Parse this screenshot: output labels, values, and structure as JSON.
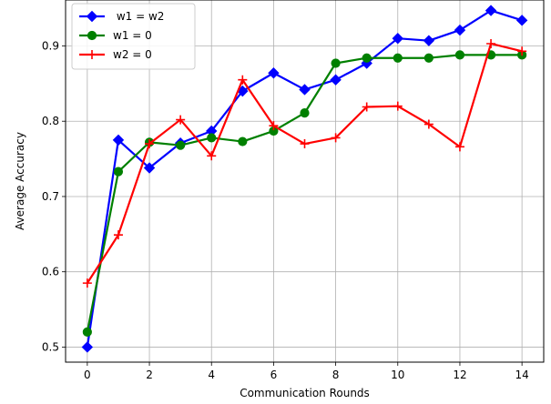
{
  "chart_data": {
    "type": "line",
    "title": "",
    "xlabel": "Communication Rounds",
    "ylabel": "Average Accuracy",
    "xlim": [
      -0.7,
      14.7
    ],
    "ylim": [
      0.48,
      0.961
    ],
    "xticks": [
      0,
      2,
      4,
      6,
      8,
      10,
      12,
      14
    ],
    "yticks": [
      0.5,
      0.6,
      0.7,
      0.8,
      0.9
    ],
    "xtick_labels": [
      "0",
      "2",
      "4",
      "6",
      "8",
      "10",
      "12",
      "14"
    ],
    "ytick_labels": [
      "0.5",
      "0.6",
      "0.7",
      "0.8",
      "0.9"
    ],
    "grid": true,
    "legend_position": "top-left",
    "x": [
      0,
      1,
      2,
      3,
      4,
      5,
      6,
      7,
      8,
      9,
      10,
      11,
      12,
      13,
      14
    ],
    "series": [
      {
        "name": " w1 = w2",
        "color": "#0000ff",
        "marker": "diamond",
        "values": [
          0.5,
          0.775,
          0.738,
          0.771,
          0.787,
          0.84,
          0.864,
          0.842,
          0.855,
          0.877,
          0.91,
          0.907,
          0.921,
          0.947,
          0.934
        ]
      },
      {
        "name": "w1 = 0",
        "color": "#008000",
        "marker": "circle",
        "values": [
          0.52,
          0.733,
          0.772,
          0.768,
          0.778,
          0.773,
          0.787,
          0.811,
          0.877,
          0.884,
          0.884,
          0.884,
          0.888,
          0.888,
          0.888
        ]
      },
      {
        "name": "w2 = 0",
        "color": "#ff0000",
        "marker": "plus",
        "values": [
          0.585,
          0.649,
          0.77,
          0.802,
          0.754,
          0.855,
          0.794,
          0.77,
          0.778,
          0.819,
          0.82,
          0.796,
          0.766,
          0.903,
          0.893
        ]
      }
    ]
  }
}
